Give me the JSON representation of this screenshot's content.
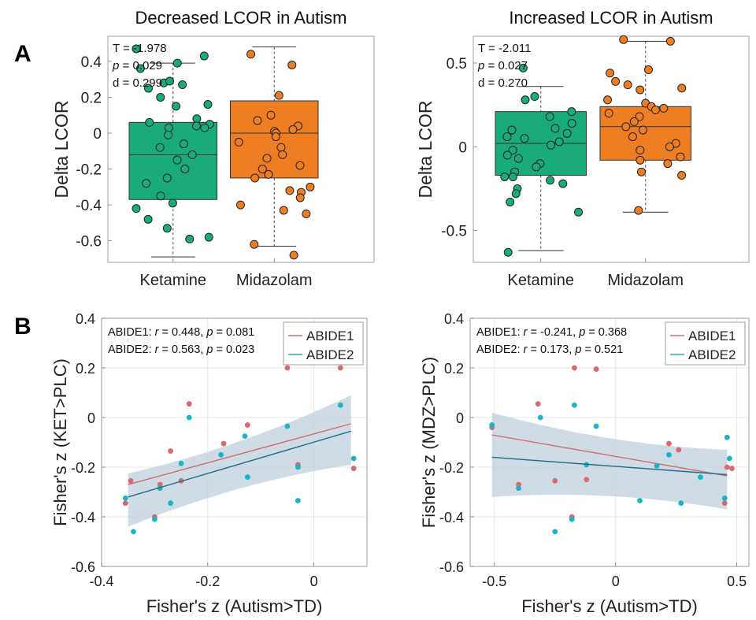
{
  "colors": {
    "ketamine": "#1aab7a",
    "midazolam": "#ef7d22",
    "abide1": "#d9696f",
    "abide2": "#1bb3c8",
    "fit1": "#cf6d72",
    "fit2": "#1b6f86",
    "band": "#bfd0dc"
  },
  "panel_labels": {
    "a": "A",
    "b": "B"
  },
  "chart_data": [
    {
      "id": "A-left",
      "type": "box",
      "title": "Decreased LCOR in Autism",
      "ylabel": "Delta LCOR",
      "ylim": [
        -0.72,
        0.54
      ],
      "yticks": [
        -0.6,
        -0.4,
        -0.2,
        0,
        0.2,
        0.4
      ],
      "yticklabels": [
        "-0.6",
        "-0.4",
        "-0.2",
        "0",
        "0.2",
        "0.4"
      ],
      "categories": [
        "Ketamine",
        "Midazolam"
      ],
      "stats": [
        {
          "prefix": "T = ",
          "value": "-1.978"
        },
        {
          "prefix": "p",
          "value": " = 0.029"
        },
        {
          "prefix": "d = ",
          "value": "0.299"
        }
      ],
      "boxes": [
        {
          "name": "Ketamine",
          "q1": -0.37,
          "median": -0.12,
          "q3": 0.06,
          "whisker_low": -0.69,
          "whisker_high": 0.39,
          "points": [
            0.47,
            0.43,
            0.36,
            0.39,
            0.28,
            0.29,
            0.27,
            0.25,
            0.2,
            0.15,
            0.16,
            0.08,
            0.06,
            0.05,
            0.04,
            0.03,
            0.03,
            -0.01,
            -0.06,
            -0.08,
            -0.12,
            -0.15,
            -0.2,
            -0.25,
            -0.28,
            -0.35,
            -0.39,
            -0.42,
            -0.48,
            -0.53,
            -0.58,
            -0.59
          ]
        },
        {
          "name": "Midazolam",
          "q1": -0.25,
          "median": 0.0,
          "q3": 0.18,
          "whisker_low": -0.63,
          "whisker_high": 0.48,
          "points": [
            0.44,
            0.38,
            0.21,
            0.1,
            0.07,
            0.04,
            0.02,
            0.01,
            0.0,
            -0.02,
            -0.05,
            -0.08,
            -0.12,
            -0.14,
            -0.18,
            -0.2,
            -0.23,
            -0.25,
            -0.3,
            -0.32,
            -0.33,
            -0.36,
            -0.4,
            -0.43,
            -0.45,
            -0.62,
            -0.68
          ]
        }
      ]
    },
    {
      "id": "A-right",
      "type": "box",
      "title": "Increased LCOR in Autism",
      "ylabel": "Delta LCOR",
      "ylim": [
        -0.69,
        0.66
      ],
      "yticks": [
        -0.5,
        0,
        0.5
      ],
      "yticklabels": [
        "-0.5",
        "0",
        "0.5"
      ],
      "categories": [
        "Ketamine",
        "Midazolam"
      ],
      "stats": [
        {
          "prefix": "T = ",
          "value": "-2.011"
        },
        {
          "prefix": "p",
          "value": " = 0.027"
        },
        {
          "prefix": "d = ",
          "value": "0.270"
        }
      ],
      "boxes": [
        {
          "name": "Ketamine",
          "q1": -0.17,
          "median": 0.02,
          "q3": 0.21,
          "whisker_low": -0.62,
          "whisker_high": 0.36,
          "points": [
            0.47,
            0.3,
            0.28,
            0.21,
            0.18,
            0.14,
            0.11,
            0.1,
            0.08,
            0.06,
            0.05,
            0.03,
            0.01,
            -0.02,
            -0.05,
            -0.07,
            -0.1,
            -0.12,
            -0.15,
            -0.18,
            -0.18,
            -0.2,
            -0.22,
            -0.25,
            -0.28,
            -0.33,
            -0.39,
            -0.63
          ]
        },
        {
          "name": "Midazolam",
          "q1": -0.08,
          "median": 0.12,
          "q3": 0.24,
          "whisker_low": -0.39,
          "whisker_high": 0.63,
          "points": [
            0.64,
            0.63,
            0.46,
            0.44,
            0.39,
            0.37,
            0.35,
            0.34,
            0.28,
            0.26,
            0.24,
            0.23,
            0.22,
            0.2,
            0.18,
            0.15,
            0.12,
            0.1,
            0.06,
            0.02,
            0.0,
            -0.02,
            -0.06,
            -0.08,
            -0.1,
            -0.15,
            -0.17,
            -0.38
          ]
        }
      ]
    },
    {
      "id": "B-left",
      "type": "scatter",
      "xlabel": "Fisher's z (Autism>TD)",
      "ylabel": "Fisher's z (KET>PLC)",
      "xlim": [
        -0.4,
        0.1
      ],
      "ylim": [
        -0.6,
        0.4
      ],
      "xticks": [
        -0.4,
        -0.2,
        0
      ],
      "xticklabels": [
        "-0.4",
        "-0.2",
        "0"
      ],
      "yticks": [
        -0.6,
        -0.4,
        -0.2,
        0,
        0.2,
        0.4
      ],
      "yticklabels": [
        "-0.6",
        "-0.4",
        "-0.2",
        "0",
        "0.2",
        "0.4"
      ],
      "grid": true,
      "annotations": [
        {
          "dataset": "ABIDE1: ",
          "r": " = 0.448, ",
          "p": " = 0.081"
        },
        {
          "dataset": "ABIDE2: ",
          "r": " = 0.563, ",
          "p": " = 0.023"
        }
      ],
      "legend": {
        "position": "top-right",
        "entries": [
          "ABIDE1",
          "ABIDE2"
        ]
      },
      "band": {
        "x": [
          -0.35,
          0.07
        ],
        "upper": [
          -0.225,
          0.09
        ],
        "lower": [
          -0.44,
          -0.19
        ]
      },
      "series": [
        {
          "name": "ABIDE1",
          "fit": {
            "x": [
              -0.35,
              0.07
            ],
            "y": [
              -0.27,
              -0.025
            ]
          },
          "points": [
            [
              -0.355,
              -0.345
            ],
            [
              -0.345,
              -0.255
            ],
            [
              -0.3,
              -0.4
            ],
            [
              -0.29,
              -0.27
            ],
            [
              -0.27,
              -0.135
            ],
            [
              -0.25,
              -0.255
            ],
            [
              -0.235,
              0.055
            ],
            [
              -0.17,
              -0.105
            ],
            [
              -0.125,
              -0.03
            ],
            [
              -0.05,
              0.2
            ],
            [
              -0.03,
              -0.19
            ],
            [
              0.05,
              0.2
            ],
            [
              0.075,
              -0.205
            ]
          ]
        },
        {
          "name": "ABIDE2",
          "fit": {
            "x": [
              -0.35,
              0.07
            ],
            "y": [
              -0.32,
              -0.055
            ]
          },
          "points": [
            [
              -0.355,
              -0.325
            ],
            [
              -0.34,
              -0.46
            ],
            [
              -0.3,
              -0.41
            ],
            [
              -0.29,
              -0.285
            ],
            [
              -0.27,
              -0.345
            ],
            [
              -0.25,
              -0.185
            ],
            [
              -0.235,
              0.0
            ],
            [
              -0.175,
              -0.15
            ],
            [
              -0.13,
              -0.075
            ],
            [
              -0.125,
              -0.24
            ],
            [
              -0.05,
              -0.035
            ],
            [
              -0.03,
              -0.335
            ],
            [
              -0.03,
              -0.2
            ],
            [
              0.05,
              0.05
            ],
            [
              0.075,
              -0.165
            ]
          ]
        }
      ]
    },
    {
      "id": "B-right",
      "type": "scatter",
      "xlabel": "Fisher's z (Autism>TD)",
      "ylabel": "Fisher's z (MDZ>PLC)",
      "xlim": [
        -0.6,
        0.55
      ],
      "ylim": [
        -0.6,
        0.4
      ],
      "xticks": [
        -0.5,
        0,
        0.5
      ],
      "xticklabels": [
        "-0.5",
        "0",
        "0.5"
      ],
      "yticks": [
        -0.6,
        -0.4,
        -0.2,
        0,
        0.2,
        0.4
      ],
      "yticklabels": [
        "-0.6",
        "-0.4",
        "-0.2",
        "0",
        "0.2",
        "0.4"
      ],
      "grid": true,
      "annotations": [
        {
          "dataset": "ABIDE1: ",
          "r": " = -0.241, ",
          "p": " = 0.368"
        },
        {
          "dataset": "ABIDE2: ",
          "r": " = 0.173, ",
          "p": " = 0.521"
        }
      ],
      "legend": {
        "position": "top-right",
        "entries": [
          "ABIDE1",
          "ABIDE2"
        ]
      },
      "band": {
        "x": [
          -0.51,
          0.46
        ],
        "upper": [
          0.02,
          -0.13
        ],
        "lower": [
          -0.32,
          -0.37
        ]
      },
      "series": [
        {
          "name": "ABIDE1",
          "fit": {
            "x": [
              -0.51,
              0.46
            ],
            "y": [
              -0.07,
              -0.235
            ]
          },
          "points": [
            [
              -0.51,
              -0.04
            ],
            [
              -0.4,
              -0.27
            ],
            [
              -0.32,
              0.055
            ],
            [
              -0.25,
              -0.255
            ],
            [
              -0.18,
              -0.4
            ],
            [
              -0.17,
              0.2
            ],
            [
              -0.12,
              -0.25
            ],
            [
              -0.08,
              0.195
            ],
            [
              0.22,
              -0.105
            ],
            [
              0.26,
              -0.13
            ],
            [
              0.45,
              -0.345
            ],
            [
              0.46,
              -0.2
            ],
            [
              0.48,
              -0.205
            ]
          ]
        },
        {
          "name": "ABIDE2",
          "fit": {
            "x": [
              -0.51,
              0.46
            ],
            "y": [
              -0.16,
              -0.23
            ]
          },
          "points": [
            [
              -0.51,
              -0.03
            ],
            [
              -0.4,
              -0.285
            ],
            [
              -0.31,
              0.0
            ],
            [
              -0.25,
              -0.46
            ],
            [
              -0.18,
              -0.41
            ],
            [
              -0.17,
              0.05
            ],
            [
              -0.12,
              -0.19
            ],
            [
              -0.08,
              -0.035
            ],
            [
              0.1,
              -0.335
            ],
            [
              0.17,
              -0.195
            ],
            [
              0.22,
              -0.15
            ],
            [
              0.27,
              -0.345
            ],
            [
              0.35,
              -0.24
            ],
            [
              0.45,
              -0.325
            ],
            [
              0.46,
              -0.08
            ],
            [
              0.47,
              -0.165
            ]
          ]
        }
      ]
    }
  ]
}
